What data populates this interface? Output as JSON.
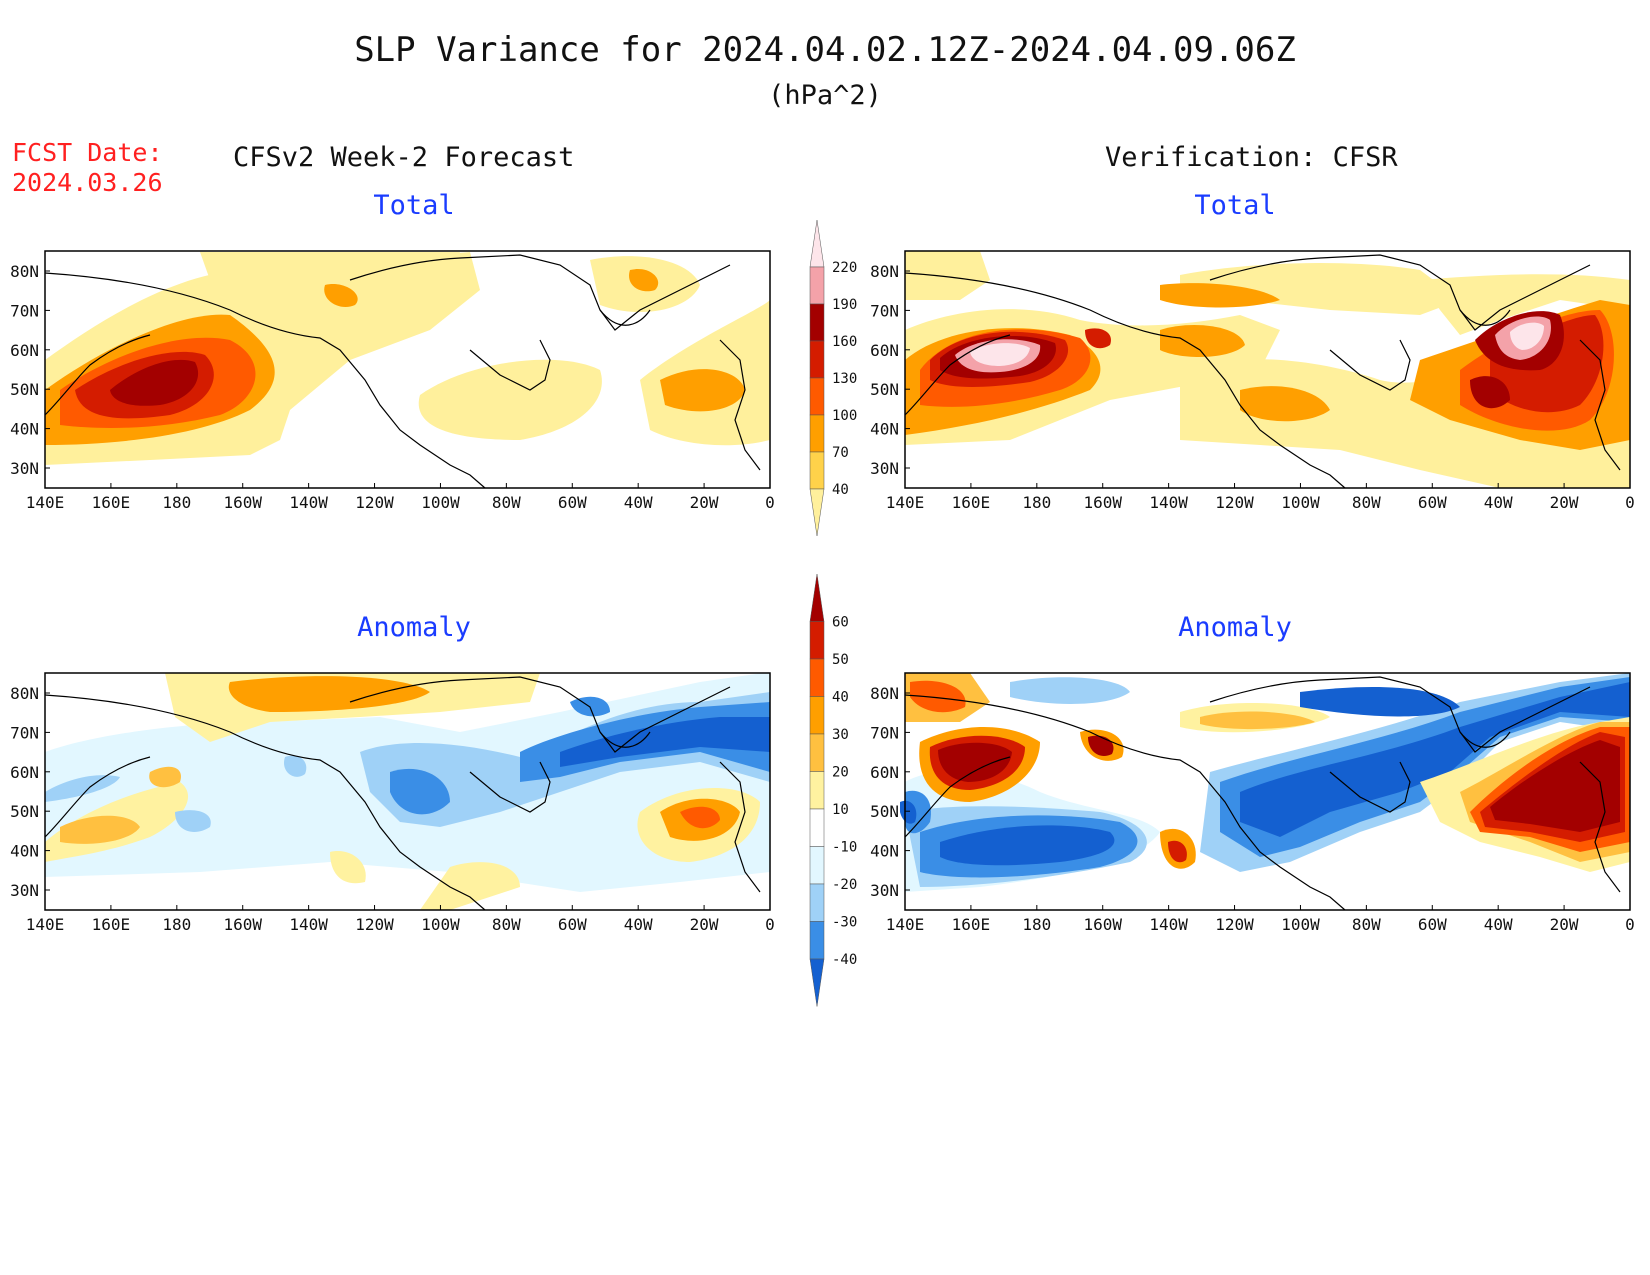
{
  "figure": {
    "title": "SLP Variance for 2024.04.02.12Z-2024.04.09.06Z",
    "units": "(hPa^2)",
    "fcst_date_label": "FCST Date:",
    "fcst_date_value": "2024.03.26",
    "left_header": "CFSv2 Week-2 Forecast",
    "right_header": "Verification: CFSR"
  },
  "panels": [
    {
      "id": "fcst-total",
      "subtitle": "Total"
    },
    {
      "id": "cfsr-total",
      "subtitle": "Total"
    },
    {
      "id": "fcst-anomaly",
      "subtitle": "Anomaly"
    },
    {
      "id": "cfsr-anomaly",
      "subtitle": "Anomaly"
    }
  ],
  "axes": {
    "lon_labels": [
      "140E",
      "160E",
      "180",
      "160W",
      "140W",
      "120W",
      "100W",
      "80W",
      "60W",
      "40W",
      "20W",
      "0"
    ],
    "lat_labels": [
      "80N",
      "70N",
      "60N",
      "50N",
      "40N",
      "30N"
    ]
  },
  "colorbars": {
    "total": {
      "labels": [
        "220",
        "190",
        "160",
        "130",
        "100",
        "70",
        "40"
      ],
      "colors": [
        "#fde5ea",
        "#f4a2a9",
        "#a30000",
        "#d41c00",
        "#ff5a00",
        "#ff9f00",
        "#ffd24a",
        "#fff09c"
      ]
    },
    "anomaly": {
      "labels": [
        "60",
        "50",
        "40",
        "30",
        "20",
        "10",
        "-10",
        "-20",
        "-30",
        "-40"
      ],
      "colors": [
        "#a30000",
        "#d41c00",
        "#ff5a00",
        "#ff9f00",
        "#ffc040",
        "#fff2a0",
        "#ffffff",
        "#e2f7ff",
        "#9fd1f7",
        "#3a8ee6",
        "#1460d0"
      ]
    }
  },
  "colors": {
    "title_text": "#111111",
    "fcst_date_text": "#ff2020",
    "subtitle_text": "#1a3cff"
  }
}
